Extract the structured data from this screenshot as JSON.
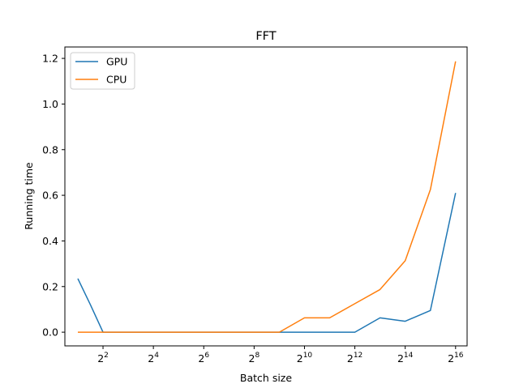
{
  "chart_data": {
    "type": "line",
    "title": "FFT",
    "xlabel": "Batch size",
    "ylabel": "Running time",
    "x": [
      2,
      2.83,
      4,
      8,
      16,
      32,
      64,
      128,
      256,
      512,
      1024,
      2048,
      4096,
      8192,
      16384,
      32768,
      65536
    ],
    "x_scale": "log2",
    "xlim": [
      1.4,
      90000
    ],
    "ylim": [
      -0.06,
      1.25
    ],
    "x_ticks": [
      {
        "base": "2",
        "exp": "2"
      },
      {
        "base": "2",
        "exp": "4"
      },
      {
        "base": "2",
        "exp": "6"
      },
      {
        "base": "2",
        "exp": "8"
      },
      {
        "base": "2",
        "exp": "10"
      },
      {
        "base": "2",
        "exp": "12"
      },
      {
        "base": "2",
        "exp": "14"
      },
      {
        "base": "2",
        "exp": "16"
      }
    ],
    "y_ticks": [
      "0.0",
      "0.2",
      "0.4",
      "0.6",
      "0.8",
      "1.0",
      "1.2"
    ],
    "grid": false,
    "legend_position": "top-left",
    "series": [
      {
        "name": "GPU",
        "color": "#1f77b4",
        "values": [
          0.235,
          0.12,
          0.0,
          0.0,
          0.0,
          0.0,
          0.0,
          0.0,
          0.0,
          0.0,
          0.0,
          0.0,
          0.0,
          0.063,
          0.048,
          0.095,
          0.61
        ]
      },
      {
        "name": "CPU",
        "color": "#ff7f0e",
        "values": [
          0.0,
          0.0,
          0.0,
          0.0,
          0.0,
          0.0,
          0.0,
          0.0,
          0.0,
          0.0,
          0.063,
          0.063,
          0.125,
          0.187,
          0.313,
          0.625,
          1.187
        ]
      }
    ]
  }
}
